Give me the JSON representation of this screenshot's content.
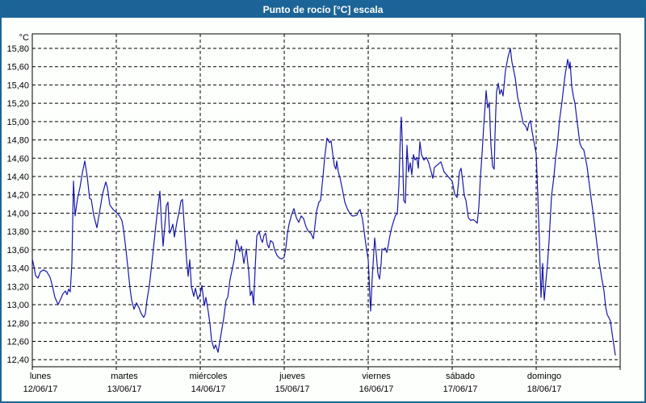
{
  "window": {
    "title": "Punto de rocío [°C] escala",
    "titlebar_color": "#1c6497",
    "border_color": "#1a6599",
    "background": "#fdfffd"
  },
  "chart_data": {
    "type": "line",
    "title": "Punto de rocío [°C] escala",
    "ylabel_unit": "°C",
    "xlabel": "",
    "grid": true,
    "line_color": "#1818aa",
    "ylim": [
      12.4,
      15.8
    ],
    "ytick_step": 0.2,
    "y_tick_labels": [
      "15,80",
      "15,60",
      "15,40",
      "15,20",
      "15,00",
      "14,80",
      "14,60",
      "14,40",
      "14,20",
      "14,00",
      "13,80",
      "13,60",
      "13,40",
      "13,20",
      "13,00",
      "12,80",
      "12,60",
      "12,40"
    ],
    "x_days": [
      {
        "name": "lunes",
        "date": "12/06/17"
      },
      {
        "name": "martes",
        "date": "13/06/17"
      },
      {
        "name": "miércoles",
        "date": "14/06/17"
      },
      {
        "name": "jueves",
        "date": "15/06/17"
      },
      {
        "name": "viernes",
        "date": "16/06/17"
      },
      {
        "name": "sábado",
        "date": "17/06/17"
      },
      {
        "name": "domingo",
        "date": "18/06/17"
      }
    ],
    "xlim_days": [
      0,
      7
    ],
    "points": [
      [
        0.0,
        13.5
      ],
      [
        0.019,
        13.42
      ],
      [
        0.038,
        13.32
      ],
      [
        0.067,
        13.29
      ],
      [
        0.096,
        13.36
      ],
      [
        0.135,
        13.38
      ],
      [
        0.173,
        13.36
      ],
      [
        0.212,
        13.3
      ],
      [
        0.24,
        13.2
      ],
      [
        0.269,
        13.08
      ],
      [
        0.308,
        13.0
      ],
      [
        0.337,
        13.06
      ],
      [
        0.365,
        13.12
      ],
      [
        0.394,
        13.15
      ],
      [
        0.413,
        13.11
      ],
      [
        0.433,
        13.17
      ],
      [
        0.452,
        13.14
      ],
      [
        0.471,
        13.45
      ],
      [
        0.49,
        14.35
      ],
      [
        0.51,
        13.97
      ],
      [
        0.538,
        14.16
      ],
      [
        0.567,
        14.28
      ],
      [
        0.596,
        14.44
      ],
      [
        0.625,
        14.57
      ],
      [
        0.654,
        14.4
      ],
      [
        0.683,
        14.16
      ],
      [
        0.702,
        14.15
      ],
      [
        0.731,
        13.98
      ],
      [
        0.769,
        13.84
      ],
      [
        0.808,
        14.05
      ],
      [
        0.837,
        14.21
      ],
      [
        0.875,
        14.34
      ],
      [
        0.894,
        14.28
      ],
      [
        0.923,
        14.09
      ],
      [
        0.962,
        14.04
      ],
      [
        1.0,
        14.01
      ],
      [
        1.038,
        13.97
      ],
      [
        1.067,
        13.92
      ],
      [
        1.087,
        13.82
      ],
      [
        1.115,
        13.6
      ],
      [
        1.144,
        13.35
      ],
      [
        1.163,
        13.18
      ],
      [
        1.183,
        13.05
      ],
      [
        1.212,
        12.95
      ],
      [
        1.24,
        13.02
      ],
      [
        1.269,
        12.97
      ],
      [
        1.298,
        12.9
      ],
      [
        1.327,
        12.86
      ],
      [
        1.346,
        12.9
      ],
      [
        1.365,
        13.05
      ],
      [
        1.394,
        13.21
      ],
      [
        1.423,
        13.45
      ],
      [
        1.452,
        13.7
      ],
      [
        1.481,
        13.95
      ],
      [
        1.5,
        14.1
      ],
      [
        1.519,
        14.24
      ],
      [
        1.538,
        13.9
      ],
      [
        1.558,
        13.64
      ],
      [
        1.577,
        13.85
      ],
      [
        1.596,
        14.08
      ],
      [
        1.615,
        14.12
      ],
      [
        1.635,
        13.78
      ],
      [
        1.654,
        13.82
      ],
      [
        1.673,
        13.88
      ],
      [
        1.692,
        13.74
      ],
      [
        1.721,
        13.9
      ],
      [
        1.75,
        14.02
      ],
      [
        1.769,
        14.13
      ],
      [
        1.788,
        14.15
      ],
      [
        1.808,
        13.89
      ],
      [
        1.837,
        13.5
      ],
      [
        1.856,
        13.31
      ],
      [
        1.875,
        13.49
      ],
      [
        1.894,
        13.2
      ],
      [
        1.923,
        13.09
      ],
      [
        1.942,
        13.18
      ],
      [
        1.971,
        13.06
      ],
      [
        2.0,
        13.12
      ],
      [
        2.019,
        13.21
      ],
      [
        2.048,
        12.99
      ],
      [
        2.067,
        13.08
      ],
      [
        2.096,
        12.92
      ],
      [
        2.115,
        12.79
      ],
      [
        2.135,
        12.61
      ],
      [
        2.163,
        12.52
      ],
      [
        2.183,
        12.56
      ],
      [
        2.212,
        12.48
      ],
      [
        2.24,
        12.64
      ],
      [
        2.279,
        12.85
      ],
      [
        2.308,
        13.05
      ],
      [
        2.327,
        13.08
      ],
      [
        2.356,
        13.28
      ],
      [
        2.404,
        13.49
      ],
      [
        2.433,
        13.71
      ],
      [
        2.471,
        13.58
      ],
      [
        2.49,
        13.64
      ],
      [
        2.519,
        13.45
      ],
      [
        2.548,
        13.61
      ],
      [
        2.577,
        13.36
      ],
      [
        2.596,
        13.1
      ],
      [
        2.615,
        13.15
      ],
      [
        2.635,
        13.0
      ],
      [
        2.654,
        13.4
      ],
      [
        2.673,
        13.75
      ],
      [
        2.702,
        13.8
      ],
      [
        2.721,
        13.72
      ],
      [
        2.74,
        13.68
      ],
      [
        2.76,
        13.76
      ],
      [
        2.779,
        13.78
      ],
      [
        2.798,
        13.66
      ],
      [
        2.817,
        13.62
      ],
      [
        2.837,
        13.7
      ],
      [
        2.865,
        13.68
      ],
      [
        2.885,
        13.6
      ],
      [
        2.913,
        13.54
      ],
      [
        2.942,
        13.51
      ],
      [
        2.971,
        13.5
      ],
      [
        3.0,
        13.52
      ],
      [
        3.019,
        13.62
      ],
      [
        3.038,
        13.78
      ],
      [
        3.058,
        13.88
      ],
      [
        3.087,
        13.98
      ],
      [
        3.115,
        14.05
      ],
      [
        3.144,
        13.95
      ],
      [
        3.173,
        13.9
      ],
      [
        3.202,
        13.97
      ],
      [
        3.231,
        13.94
      ],
      [
        3.26,
        13.85
      ],
      [
        3.288,
        13.8
      ],
      [
        3.317,
        13.78
      ],
      [
        3.346,
        13.72
      ],
      [
        3.365,
        13.86
      ],
      [
        3.385,
        14.02
      ],
      [
        3.413,
        14.12
      ],
      [
        3.433,
        14.14
      ],
      [
        3.462,
        14.4
      ],
      [
        3.481,
        14.6
      ],
      [
        3.51,
        14.82
      ],
      [
        3.538,
        14.77
      ],
      [
        3.558,
        14.79
      ],
      [
        3.577,
        14.65
      ],
      [
        3.596,
        14.52
      ],
      [
        3.615,
        14.48
      ],
      [
        3.625,
        14.57
      ],
      [
        3.644,
        14.45
      ],
      [
        3.663,
        14.39
      ],
      [
        3.692,
        14.26
      ],
      [
        3.721,
        14.12
      ],
      [
        3.75,
        14.05
      ],
      [
        3.779,
        14.0
      ],
      [
        3.808,
        13.97
      ],
      [
        3.837,
        13.97
      ],
      [
        3.865,
        13.98
      ],
      [
        3.885,
        14.02
      ],
      [
        3.904,
        14.04
      ],
      [
        3.933,
        13.93
      ],
      [
        3.962,
        13.73
      ],
      [
        3.981,
        13.6
      ],
      [
        4.0,
        13.49
      ],
      [
        4.01,
        13.31
      ],
      [
        4.019,
        13.1
      ],
      [
        4.029,
        12.93
      ],
      [
        4.048,
        13.3
      ],
      [
        4.058,
        13.44
      ],
      [
        4.077,
        13.73
      ],
      [
        4.096,
        13.55
      ],
      [
        4.115,
        13.34
      ],
      [
        4.135,
        13.28
      ],
      [
        4.154,
        13.45
      ],
      [
        4.163,
        13.61
      ],
      [
        4.183,
        13.6
      ],
      [
        4.202,
        13.62
      ],
      [
        4.221,
        13.57
      ],
      [
        4.24,
        13.66
      ],
      [
        4.26,
        13.76
      ],
      [
        4.279,
        13.84
      ],
      [
        4.308,
        13.93
      ],
      [
        4.327,
        13.98
      ],
      [
        4.346,
        13.99
      ],
      [
        4.365,
        14.3
      ],
      [
        4.385,
        14.9
      ],
      [
        4.394,
        15.05
      ],
      [
        4.404,
        14.81
      ],
      [
        4.423,
        14.14
      ],
      [
        4.442,
        14.11
      ],
      [
        4.462,
        14.74
      ],
      [
        4.481,
        14.45
      ],
      [
        4.5,
        14.55
      ],
      [
        4.519,
        14.42
      ],
      [
        4.538,
        14.64
      ],
      [
        4.558,
        14.58
      ],
      [
        4.577,
        14.61
      ],
      [
        4.596,
        14.49
      ],
      [
        4.615,
        14.78
      ],
      [
        4.635,
        14.64
      ],
      [
        4.663,
        14.58
      ],
      [
        4.692,
        14.61
      ],
      [
        4.721,
        14.55
      ],
      [
        4.75,
        14.45
      ],
      [
        4.769,
        14.38
      ],
      [
        4.788,
        14.5
      ],
      [
        4.827,
        14.53
      ],
      [
        4.865,
        14.56
      ],
      [
        4.904,
        14.45
      ],
      [
        4.942,
        14.41
      ],
      [
        4.971,
        14.38
      ],
      [
        5.0,
        14.35
      ],
      [
        5.029,
        14.21
      ],
      [
        5.058,
        14.17
      ],
      [
        5.087,
        14.45
      ],
      [
        5.106,
        14.49
      ],
      [
        5.125,
        14.35
      ],
      [
        5.144,
        14.19
      ],
      [
        5.163,
        14.14
      ],
      [
        5.192,
        13.95
      ],
      [
        5.221,
        13.92
      ],
      [
        5.25,
        13.93
      ],
      [
        5.279,
        13.91
      ],
      [
        5.298,
        13.89
      ],
      [
        5.317,
        14.07
      ],
      [
        5.337,
        14.4
      ],
      [
        5.356,
        14.65
      ],
      [
        5.375,
        14.95
      ],
      [
        5.394,
        15.2
      ],
      [
        5.404,
        15.34
      ],
      [
        5.423,
        15.15
      ],
      [
        5.442,
        15.21
      ],
      [
        5.452,
        14.95
      ],
      [
        5.462,
        14.74
      ],
      [
        5.481,
        14.51
      ],
      [
        5.5,
        14.48
      ],
      [
        5.51,
        14.85
      ],
      [
        5.519,
        15.12
      ],
      [
        5.529,
        15.33
      ],
      [
        5.548,
        15.42
      ],
      [
        5.567,
        15.3
      ],
      [
        5.587,
        15.35
      ],
      [
        5.606,
        15.28
      ],
      [
        5.635,
        15.56
      ],
      [
        5.663,
        15.7
      ],
      [
        5.692,
        15.8
      ],
      [
        5.712,
        15.65
      ],
      [
        5.75,
        15.48
      ],
      [
        5.779,
        15.27
      ],
      [
        5.808,
        15.15
      ],
      [
        5.846,
        14.98
      ],
      [
        5.875,
        14.95
      ],
      [
        5.894,
        14.9
      ],
      [
        5.913,
        14.98
      ],
      [
        5.933,
        15.01
      ],
      [
        5.952,
        14.89
      ],
      [
        5.971,
        14.79
      ],
      [
        6.0,
        14.65
      ],
      [
        6.019,
        14.2
      ],
      [
        6.038,
        13.7
      ],
      [
        6.048,
        13.35
      ],
      [
        6.058,
        13.08
      ],
      [
        6.077,
        13.45
      ],
      [
        6.087,
        13.2
      ],
      [
        6.096,
        13.05
      ],
      [
        6.115,
        13.25
      ],
      [
        6.135,
        13.45
      ],
      [
        6.154,
        13.7
      ],
      [
        6.183,
        14.19
      ],
      [
        6.212,
        14.4
      ],
      [
        6.231,
        14.6
      ],
      [
        6.25,
        14.73
      ],
      [
        6.279,
        15.02
      ],
      [
        6.308,
        15.22
      ],
      [
        6.327,
        15.38
      ],
      [
        6.346,
        15.52
      ],
      [
        6.365,
        15.62
      ],
      [
        6.375,
        15.68
      ],
      [
        6.394,
        15.58
      ],
      [
        6.404,
        15.65
      ],
      [
        6.423,
        15.39
      ],
      [
        6.442,
        15.28
      ],
      [
        6.462,
        15.2
      ],
      [
        6.49,
        14.98
      ],
      [
        6.519,
        14.77
      ],
      [
        6.538,
        14.72
      ],
      [
        6.567,
        14.69
      ],
      [
        6.587,
        14.6
      ],
      [
        6.606,
        14.51
      ],
      [
        6.635,
        14.3
      ],
      [
        6.663,
        14.1
      ],
      [
        6.692,
        13.9
      ],
      [
        6.721,
        13.68
      ],
      [
        6.75,
        13.46
      ],
      [
        6.779,
        13.3
      ],
      [
        6.808,
        13.15
      ],
      [
        6.827,
        12.98
      ],
      [
        6.846,
        12.89
      ],
      [
        6.865,
        12.86
      ],
      [
        6.885,
        12.82
      ],
      [
        6.904,
        12.69
      ],
      [
        6.923,
        12.57
      ],
      [
        6.942,
        12.45
      ]
    ]
  }
}
